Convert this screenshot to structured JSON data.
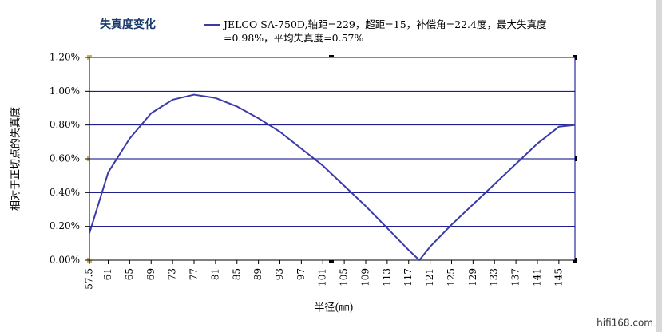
{
  "chart_data": {
    "type": "line",
    "title": "失真度变化",
    "x_label": "半径(㎜)",
    "y_label": "相对于正切点的失真度",
    "watermark": "hifi168.com",
    "x": [
      57.5,
      61,
      65,
      69,
      73,
      77,
      81,
      85,
      89,
      93,
      97,
      101,
      105,
      109,
      113,
      117,
      119,
      121,
      125,
      129,
      133,
      137,
      141,
      145,
      148
    ],
    "series": [
      {
        "name": "JELCO SA-750D,轴距=229，超距=15，补偿角=22.4度，最大失真度=0.98%，平均失真度=0.57%",
        "color": "#3a3aa8",
        "values": [
          0.16,
          0.52,
          0.72,
          0.87,
          0.95,
          0.98,
          0.96,
          0.91,
          0.84,
          0.76,
          0.66,
          0.56,
          0.44,
          0.32,
          0.19,
          0.06,
          0.0,
          0.08,
          0.21,
          0.33,
          0.45,
          0.57,
          0.69,
          0.79,
          0.8
        ]
      }
    ],
    "xlim": [
      57.5,
      148
    ],
    "xticks": [
      57.5,
      61,
      65,
      69,
      73,
      77,
      81,
      85,
      89,
      93,
      97,
      101,
      105,
      109,
      113,
      117,
      121,
      125,
      129,
      133,
      137,
      141,
      145
    ],
    "ylim": [
      0,
      1.2
    ],
    "yticks": [
      {
        "value": 0,
        "label": "0.00%"
      },
      {
        "value": 0.2,
        "label": "0.20%"
      },
      {
        "value": 0.4,
        "label": "0.40%"
      },
      {
        "value": 0.6,
        "label": "0.60%"
      },
      {
        "value": 0.8,
        "label": "0.80%"
      },
      {
        "value": 1.0,
        "label": "1.00%"
      },
      {
        "value": 1.2,
        "label": "1.20%"
      }
    ],
    "grid": true
  }
}
